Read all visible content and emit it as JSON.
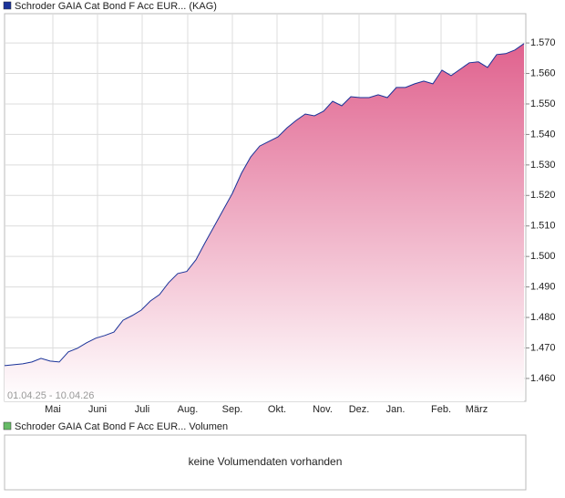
{
  "chart_data": [
    {
      "type": "area",
      "series": [
        {
          "name": "Schroder GAIA Cat Bond F Acc EUR... (KAG)",
          "color": "#1a3399",
          "values": [
            1.4642,
            1.4645,
            1.4648,
            1.4654,
            1.4666,
            1.4657,
            1.4654,
            1.4687,
            1.4699,
            1.4717,
            1.4732,
            1.4741,
            1.4752,
            1.4791,
            1.4806,
            1.4824,
            1.4854,
            1.4875,
            1.4914,
            1.4944,
            1.4951,
            1.4989,
            1.5045,
            1.5099,
            1.5153,
            1.5207,
            1.5273,
            1.5326,
            1.5362,
            1.5377,
            1.5392,
            1.5422,
            1.5446,
            1.5467,
            1.5461,
            1.5476,
            1.5509,
            1.5494,
            1.5524,
            1.5521,
            1.5521,
            1.553,
            1.5521,
            1.5554,
            1.5554,
            1.5566,
            1.5575,
            1.5566,
            1.5611,
            1.5593,
            1.5614,
            1.5635,
            1.5638,
            1.562,
            1.5662,
            1.5665,
            1.5677,
            1.5698
          ]
        }
      ],
      "fill_color": "#e0628e",
      "xlim": [
        0,
        57
      ],
      "xticks": [
        {
          "value": 5.3,
          "label": "Mai"
        },
        {
          "value": 10.2,
          "label": "Juni"
        },
        {
          "value": 15.1,
          "label": "Juli"
        },
        {
          "value": 20.1,
          "label": "Aug."
        },
        {
          "value": 25,
          "label": "Sep."
        },
        {
          "value": 29.9,
          "label": "Okt."
        },
        {
          "value": 34.9,
          "label": "Nov."
        },
        {
          "value": 38.9,
          "label": "Dez."
        },
        {
          "value": 42.9,
          "label": "Jan."
        },
        {
          "value": 47.9,
          "label": "Feb."
        },
        {
          "value": 51.8,
          "label": "März"
        }
      ],
      "ylim": [
        1.4525,
        1.5796
      ],
      "yticks": [
        {
          "value": 1.46,
          "label": "1.460"
        },
        {
          "value": 1.47,
          "label": "1.470"
        },
        {
          "value": 1.48,
          "label": "1.480"
        },
        {
          "value": 1.49,
          "label": "1.490"
        },
        {
          "value": 1.5,
          "label": "1.500"
        },
        {
          "value": 1.51,
          "label": "1.510"
        },
        {
          "value": 1.52,
          "label": "1.520"
        },
        {
          "value": 1.53,
          "label": "1.530"
        },
        {
          "value": 1.54,
          "label": "1.540"
        },
        {
          "value": 1.55,
          "label": "1.550"
        },
        {
          "value": 1.56,
          "label": "1.560"
        },
        {
          "value": 1.57,
          "label": "1.570"
        }
      ],
      "grid": true,
      "date_range": "01.04.25 - 10.04.26"
    },
    {
      "type": "volume",
      "series": [
        {
          "name": "Schroder GAIA Cat Bond F Acc EUR... Volumen",
          "color": "#66bb66"
        }
      ],
      "message": "keine Volumendaten vorhanden"
    }
  ]
}
